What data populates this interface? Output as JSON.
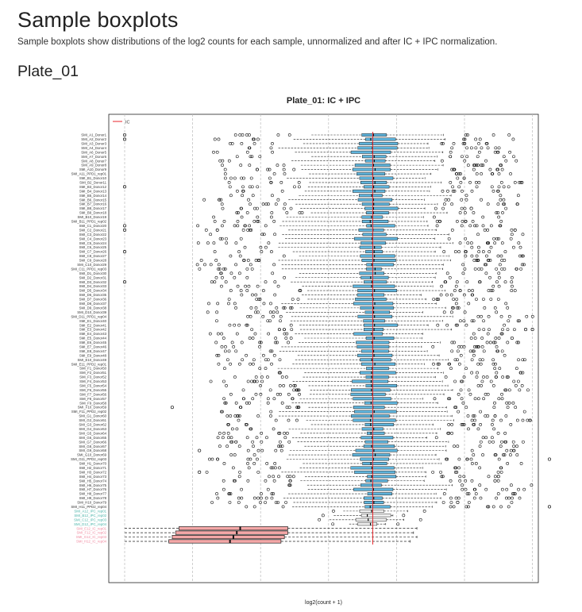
{
  "page": {
    "title": "Sample boxplots",
    "description": "Sample boxplots show distributions of the log2 counts for each sample, unnormalized and after IC + IPC normalization.",
    "section": "Plate_01"
  },
  "colors": {
    "sample_box": "#5fb4dc",
    "ic_box": "#f4a7a7",
    "reference_line": "#e8262b",
    "grid": "#bbbbbb",
    "ipc_label": "#49b3a8",
    "ic_label": "#f08aa0"
  },
  "chart_data": {
    "type": "boxplot",
    "orientation": "horizontal",
    "title": "Plate_01: IC + IPC",
    "xlabel": "log2(count + 1)",
    "ylabel": "",
    "grid": "vertical dashed",
    "legend": {
      "position": "top-left",
      "entries": [
        {
          "label": "IC",
          "style": "red line"
        }
      ]
    },
    "reference_line": 7.3,
    "xlim": [
      -0.5,
      13
    ],
    "categories": [
      "SMI_A1_Donor1",
      "SMI_A2_Donor2",
      "SMI_A3_Donor3",
      "SMI_A4_Donor4",
      "SMI_A6_Donor5",
      "SMI_A7_Donor6",
      "SMI_A8_Donor7",
      "SMI_A9_Donor8",
      "SMI_A10_Donor9",
      "SMI_A11_PPD1_rep01",
      "SMI_B1_Donor10",
      "SMI_B2_Donor11",
      "SMI_B3_Donor12",
      "SMI_B4_Donor13",
      "SMI_B5_Donor14",
      "SMI_B6_Donor15",
      "SMI_B7_Donor16",
      "SMI_B8_Donor17",
      "SMI_B9_Donor18",
      "SMI_B10_Donor19",
      "SMI_B11_PPD1_rep02",
      "SMI_C1_Donor20",
      "SMI_C2_Donor21",
      "SMI_C3_Donor22",
      "SMI_C4_Donor23",
      "SMI_C5_Donor24",
      "SMI_C6_Donor25",
      "SMI_C7_Donor26",
      "SMI_C8_Donor27",
      "SMI_C9_Donor28",
      "SMI_C10_Donor29",
      "SMI_C11_PPD1_rep03",
      "SMI_D1_Donor30",
      "SMI_D2_Donor31",
      "SMI_D3_Donor32",
      "SMI_D4_Donor33",
      "SMI_D5_Donor34",
      "SMI_D6_Donor35",
      "SMI_D7_Donor36",
      "SMI_D8_Donor37",
      "SMI_D9_Donor38",
      "SMI_D10_Donor39",
      "SMI_D11_PPD1_rep04",
      "SMI_E1_Donor40",
      "SMI_E2_Donor41",
      "SMI_E3_Donor42",
      "SMI_E4_Donor43",
      "SMI_E5_Donor44",
      "SMI_E6_Donor45",
      "SMI_E7_Donor46",
      "SMI_E8_Donor47",
      "SMI_E9_Donor48",
      "SMI_E10_Donor49",
      "SMI_E11_PPD2_rep01",
      "SMI_F1_Donor50",
      "SMI_F2_Donor51",
      "SMI_F3_Donor52",
      "SMI_F4_Donor53",
      "SMI_F5_Donor54",
      "SMI_F6_Donor55",
      "SMI_F7_Donor56",
      "SMI_F8_Donor57",
      "SMI_F9_Donor58",
      "SMI_F10_Donor59",
      "SMI_F11_PPD2_rep02",
      "SMI_G1_Donor60",
      "SMI_G2_Donor61",
      "SMI_G3_Donor62",
      "SMI_G4_Donor63",
      "SMI_G5_Donor64",
      "SMI_G6_Donor65",
      "SMI_G7_Donor66",
      "SMI_G8_Donor67",
      "SMI_G9_Donor68",
      "SMI_G10_Donor69",
      "SMI_G11_PPD2_rep03",
      "SMI_H1_Donor70",
      "SMI_H2_Donor71",
      "SMI_H3_Donor72",
      "SMI_H4_Donor73",
      "SMI_H5_Donor74",
      "SMI_H6_Donor75",
      "SMI_H7_Donor76",
      "SMI_H8_Donor77",
      "SMI_H9_Donor78",
      "SMI_H10_Donor79",
      "SMI_H11_PPD2_rep04",
      "SMI_A12_IPC_rep01",
      "SMI_B12_IPC_rep02",
      "SMI_C12_IPC_rep03",
      "SMI_D12_IPC_rep04",
      "SMI_E12_IC_rep01",
      "SMI_F12_IC_rep02",
      "SMI_G12_IC_rep03",
      "SMI_H12_IC_rep04"
    ],
    "sample_stats": {
      "median": 7.3,
      "q1": 6.9,
      "q3": 7.8,
      "whisker_low": 5.0,
      "whisker_high": 9.2
    },
    "ipc_stats": {
      "median": 7.2,
      "q1": 6.8,
      "q3": 7.6,
      "whisker_low": 6.4,
      "whisker_high": 7.9
    },
    "ic_series": [
      {
        "name": "SMI_E12_IC_rep01",
        "q1": 1.6,
        "median": 3.4,
        "q3": 4.8,
        "whisker_low": 0.0,
        "whisker_high": 8.6
      },
      {
        "name": "SMI_F12_IC_rep02",
        "q1": 1.5,
        "median": 3.3,
        "q3": 4.8,
        "whisker_low": 0.0,
        "whisker_high": 8.5
      },
      {
        "name": "SMI_G12_IC_rep03",
        "q1": 1.4,
        "median": 3.2,
        "q3": 4.7,
        "whisker_low": 0.0,
        "whisker_high": 8.6
      },
      {
        "name": "SMI_H12_IC_rep04",
        "q1": 1.3,
        "median": 3.1,
        "q3": 4.6,
        "whisker_low": 0.0,
        "whisker_high": 8.4
      }
    ],
    "far_outliers": [
      {
        "row": 0,
        "x": 0.0
      },
      {
        "row": 1,
        "x": 0.0
      },
      {
        "row": 12,
        "x": 0.0
      },
      {
        "row": 21,
        "x": 0.0
      },
      {
        "row": 22,
        "x": 0.0
      },
      {
        "row": 27,
        "x": 0.0
      },
      {
        "row": 34,
        "x": 0.0
      },
      {
        "row": 7,
        "x": 10.5
      },
      {
        "row": 17,
        "x": 10.2
      },
      {
        "row": 47,
        "x": 11.4
      },
      {
        "row": 45,
        "x": 11.8
      },
      {
        "row": 45,
        "x": 12.0
      },
      {
        "row": 63,
        "x": 1.4
      },
      {
        "row": 73,
        "x": 2.2
      },
      {
        "row": 78,
        "x": 2.2
      },
      {
        "row": 75,
        "x": 12.5
      },
      {
        "row": 86,
        "x": 12.5
      },
      {
        "row": 80,
        "x": 10.9
      },
      {
        "row": 79,
        "x": 11.0
      },
      {
        "row": 85,
        "x": 9.8
      }
    ]
  }
}
